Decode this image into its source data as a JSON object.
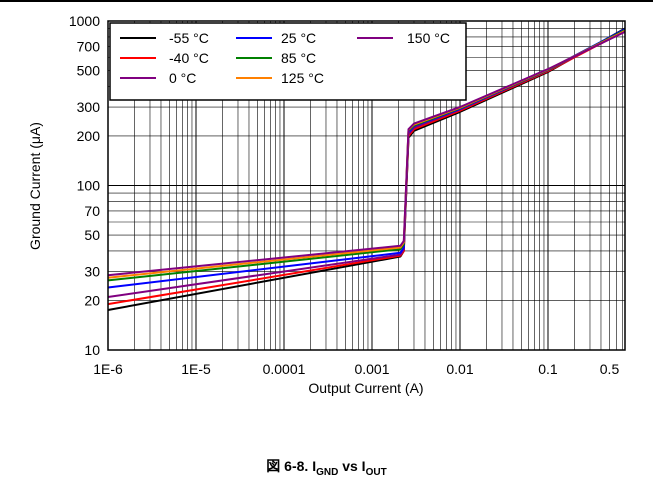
{
  "caption": {
    "prefix": "図 6-8. I",
    "sub1": "GND",
    "middle": " vs I",
    "sub2": "OUT"
  },
  "chart_data": {
    "type": "line",
    "title": "",
    "xlabel": "Output Current (A)",
    "ylabel": "Ground Current (μA)",
    "xscale": "log",
    "yscale": "log",
    "xlim": [
      1e-06,
      0.75
    ],
    "ylim": [
      10,
      1000
    ],
    "grid": true,
    "legend_position": "top-left",
    "x_ticks": [
      {
        "value": 1e-06,
        "label": "1E-6"
      },
      {
        "value": 1e-05,
        "label": "1E-5"
      },
      {
        "value": 0.0001,
        "label": "0.0001"
      },
      {
        "value": 0.001,
        "label": "0.001"
      },
      {
        "value": 0.01,
        "label": "0.01"
      },
      {
        "value": 0.1,
        "label": "0.1"
      },
      {
        "value": 0.5,
        "label": "0.5"
      }
    ],
    "y_ticks": [
      {
        "value": 10,
        "label": "10"
      },
      {
        "value": 20,
        "label": "20"
      },
      {
        "value": 30,
        "label": "30"
      },
      {
        "value": 50,
        "label": "50"
      },
      {
        "value": 70,
        "label": "70"
      },
      {
        "value": 100,
        "label": "100"
      },
      {
        "value": 200,
        "label": "200"
      },
      {
        "value": 300,
        "label": "300"
      },
      {
        "value": 500,
        "label": "500"
      },
      {
        "value": 700,
        "label": "700"
      },
      {
        "value": 1000,
        "label": "1000"
      }
    ],
    "series": [
      {
        "name": "-55 °C",
        "color": "#000000",
        "x": [
          1e-06,
          0.0021,
          0.0023,
          0.0026,
          0.003,
          0.01,
          0.1,
          0.75
        ],
        "y": [
          17.5,
          37,
          40,
          195,
          215,
          280,
          490,
          900
        ]
      },
      {
        "name": "-40 °C",
        "color": "#ff0000",
        "x": [
          1e-06,
          0.0021,
          0.0023,
          0.0026,
          0.003,
          0.01,
          0.1,
          0.75
        ],
        "y": [
          19,
          37.5,
          40,
          200,
          220,
          285,
          495,
          870
        ]
      },
      {
        "name": "0 °C",
        "color": "#800080",
        "x": [
          1e-06,
          0.0021,
          0.0023,
          0.0026,
          0.003,
          0.01,
          0.1,
          0.75
        ],
        "y": [
          21,
          38,
          41,
          205,
          225,
          290,
          500,
          880
        ]
      },
      {
        "name": "25 °C",
        "color": "#0000ff",
        "x": [
          1e-06,
          0.0021,
          0.0023,
          0.0026,
          0.003,
          0.01,
          0.1,
          0.75
        ],
        "y": [
          24,
          39,
          42,
          210,
          230,
          292,
          505,
          890
        ]
      },
      {
        "name": "85 °C",
        "color": "#008000",
        "x": [
          1e-06,
          0.0021,
          0.0023,
          0.0026,
          0.003,
          0.01,
          0.1,
          0.75
        ],
        "y": [
          26.5,
          41,
          44,
          215,
          232,
          295,
          505,
          880
        ]
      },
      {
        "name": "125 °C",
        "color": "#ff8000",
        "x": [
          1e-06,
          0.0021,
          0.0023,
          0.0026,
          0.003,
          0.01,
          0.1,
          0.75
        ],
        "y": [
          27.5,
          42,
          45,
          218,
          235,
          297,
          508,
          870
        ]
      },
      {
        "name": "150 °C",
        "color": "#800080",
        "x": [
          1e-06,
          0.0021,
          0.0023,
          0.0026,
          0.003,
          0.01,
          0.1,
          0.75
        ],
        "y": [
          28.5,
          43,
          46,
          220,
          238,
          300,
          510,
          860
        ]
      }
    ]
  }
}
